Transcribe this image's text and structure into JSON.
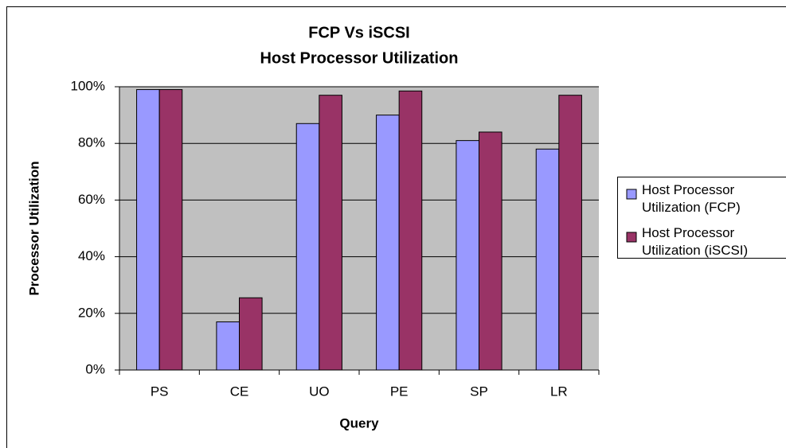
{
  "chart_data": {
    "type": "bar",
    "title": "FCP Vs iSCSI",
    "subtitle": "Host Processor Utilization",
    "x_label": "Query",
    "y_label": "Processor Utilization",
    "categories": [
      "PS",
      "CE",
      "UO",
      "PE",
      "SP",
      "LR"
    ],
    "series": [
      {
        "name": "Host Processor Utilization (FCP)",
        "color": "#9999ff",
        "values": [
          99,
          17,
          87,
          90,
          81,
          78
        ]
      },
      {
        "name": "Host Processor Utilization (iSCSI)",
        "color": "#993366",
        "values": [
          99,
          25.5,
          97,
          98.5,
          84,
          97
        ]
      }
    ],
    "ylim": [
      0,
      100
    ],
    "yticks": [
      {
        "value": 0,
        "label": "0%"
      },
      {
        "value": 20,
        "label": "20%"
      },
      {
        "value": 40,
        "label": "40%"
      },
      {
        "value": 60,
        "label": "60%"
      },
      {
        "value": 80,
        "label": "80%"
      },
      {
        "value": 100,
        "label": "100%"
      }
    ],
    "grid": true,
    "legend": "right"
  }
}
